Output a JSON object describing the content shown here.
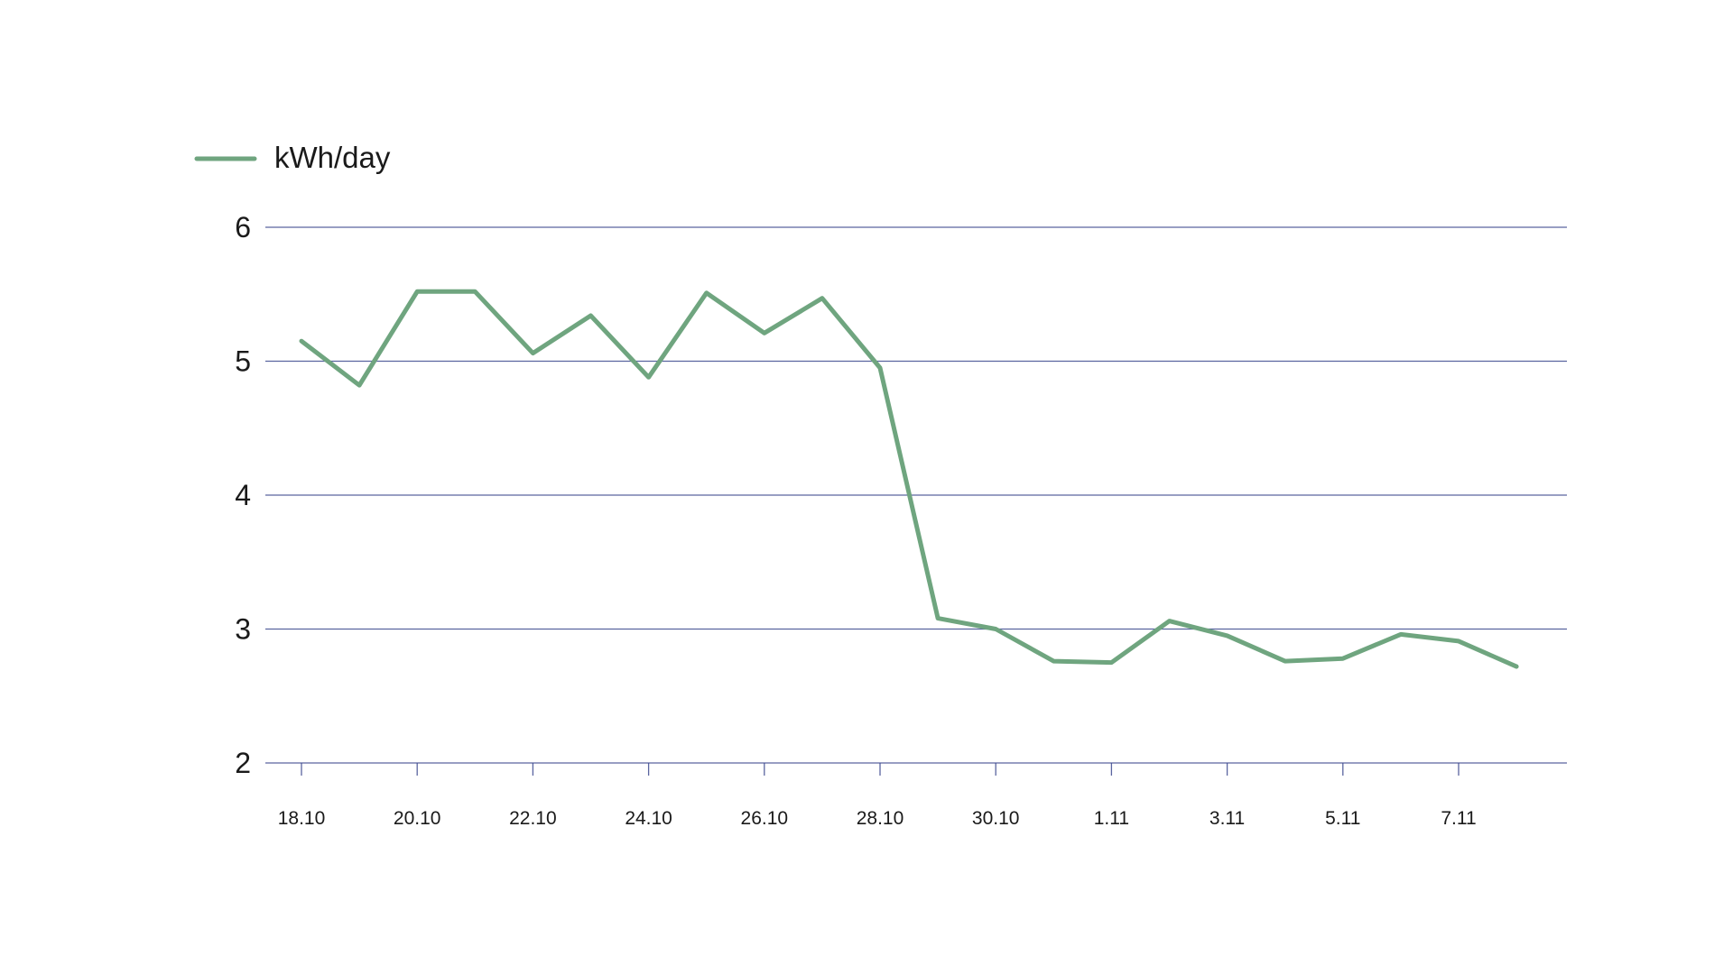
{
  "chart_data": {
    "type": "line",
    "title": "",
    "xlabel": "",
    "ylabel": "",
    "ylim": [
      2,
      6
    ],
    "yticks": [
      2,
      3,
      4,
      5,
      6
    ],
    "grid": true,
    "legend_position": "top-left",
    "x": [
      "18.10",
      "19.10",
      "20.10",
      "21.10",
      "22.10",
      "23.10",
      "24.10",
      "25.10",
      "26.10",
      "27.10",
      "28.10",
      "29.10",
      "30.10",
      "31.10",
      "1.11",
      "2.11",
      "3.11",
      "4.11",
      "5.11",
      "6.11",
      "7.11",
      "8.11"
    ],
    "xtick_labels": [
      "18.10",
      "20.10",
      "22.10",
      "24.10",
      "26.10",
      "28.10",
      "30.10",
      "1.11",
      "3.11",
      "5.11",
      "7.11"
    ],
    "series": [
      {
        "name": "kWh/day",
        "color": "#6fa57f",
        "values": [
          5.15,
          4.82,
          5.52,
          5.52,
          5.06,
          5.34,
          4.88,
          5.51,
          5.21,
          5.47,
          4.95,
          3.08,
          3.0,
          2.76,
          2.75,
          3.06,
          2.95,
          2.76,
          2.78,
          2.96,
          2.91,
          2.72
        ]
      }
    ],
    "gridline_color": "#3d4a8f"
  }
}
